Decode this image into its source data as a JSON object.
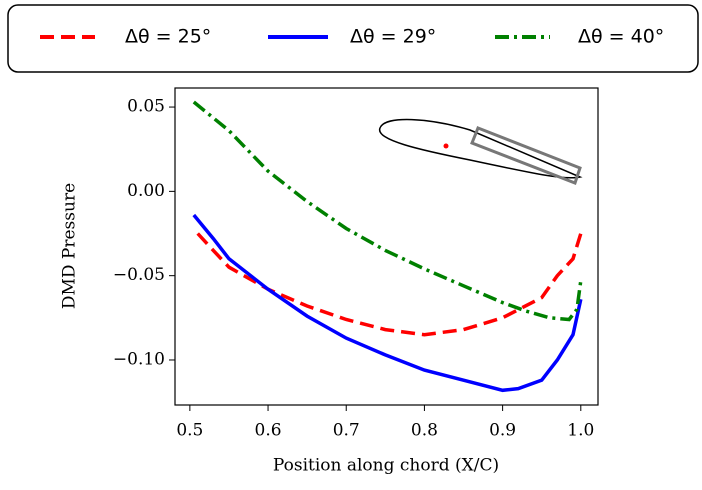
{
  "chart_data": {
    "type": "line",
    "xlabel": "Position along chord (X/C)",
    "ylabel": "DMD Pressure",
    "xlim": [
      0.481,
      1.022
    ],
    "ylim": [
      -0.1267,
      0.0613
    ],
    "xticks": [
      0.5,
      0.6,
      0.7,
      0.8,
      0.9,
      {
        "value": 1.0,
        "label": "1.0"
      }
    ],
    "yticks": [
      {
        "value": -0.1,
        "label": "−0.10"
      },
      {
        "value": -0.05,
        "label": "−0.05"
      },
      {
        "value": 0,
        "label": "0.00"
      },
      0.05
    ],
    "series": [
      {
        "name": "Δθ = 25°",
        "color": "#ff0000",
        "linestyle": "dashed",
        "x": [
          0.51,
          0.53,
          0.55,
          0.6,
          0.65,
          0.7,
          0.75,
          0.8,
          0.85,
          0.9,
          0.95,
          0.97,
          0.99,
          1.0
        ],
        "values": [
          -0.025,
          -0.035,
          -0.045,
          -0.058,
          -0.068,
          -0.076,
          -0.082,
          -0.085,
          -0.082,
          -0.075,
          -0.063,
          -0.05,
          -0.04,
          -0.025
        ]
      },
      {
        "name": "Δθ = 29°",
        "color": "#0000ff",
        "linestyle": "solid",
        "x": [
          0.505,
          0.53,
          0.55,
          0.6,
          0.65,
          0.7,
          0.75,
          0.8,
          0.85,
          0.9,
          0.92,
          0.95,
          0.97,
          0.99,
          1.0
        ],
        "values": [
          -0.014,
          -0.028,
          -0.04,
          -0.058,
          -0.074,
          -0.087,
          -0.097,
          -0.106,
          -0.112,
          -0.118,
          -0.117,
          -0.112,
          -0.1,
          -0.085,
          -0.064
        ]
      },
      {
        "name": "Δθ = 40°",
        "color": "#008000",
        "linestyle": "dashdot",
        "x": [
          0.505,
          0.55,
          0.6,
          0.65,
          0.7,
          0.75,
          0.8,
          0.85,
          0.9,
          0.93,
          0.96,
          0.985,
          0.995,
          1.0
        ],
        "values": [
          0.053,
          0.036,
          0.012,
          -0.006,
          -0.022,
          -0.035,
          -0.046,
          -0.056,
          -0.066,
          -0.071,
          -0.075,
          -0.076,
          -0.07,
          -0.053
        ]
      }
    ]
  }
}
